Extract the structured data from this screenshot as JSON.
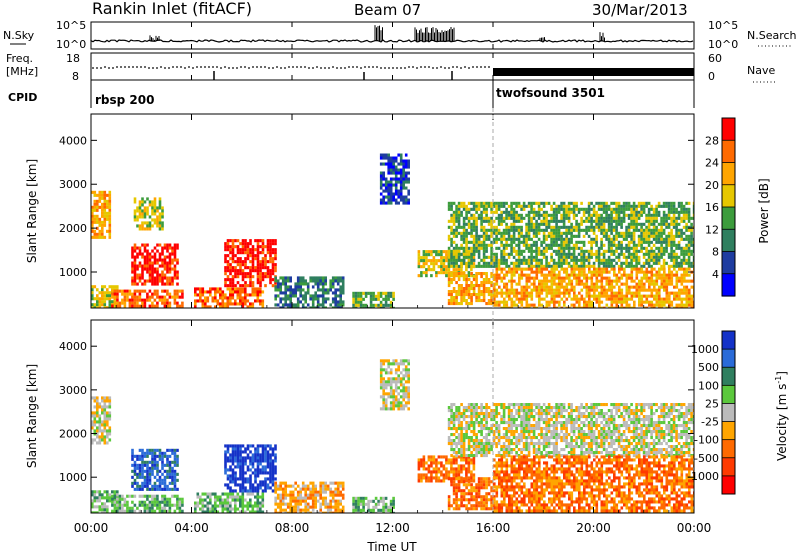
{
  "header": {
    "station": "Rankin Inlet (fitACF)",
    "beam": "Beam 07",
    "date": "30/Mar/2013"
  },
  "nsky_panel": {
    "left_label": "N.Sky",
    "right_label": "N.Search",
    "left_ticks": [
      "10^5",
      "10^0"
    ],
    "right_ticks": [
      "10^5",
      "10^0"
    ]
  },
  "freq_panel": {
    "left_label_top": "Freq.",
    "left_label_bottom": "[MHz]",
    "right_label": "Nave",
    "left_ticks": [
      "18",
      "8"
    ],
    "right_ticks": [
      "60",
      "0"
    ]
  },
  "cpid_panel": {
    "label": "CPID",
    "modes": [
      {
        "name": "rbsp 200",
        "start": "00:00"
      },
      {
        "name": "twofsound 3501",
        "start": "16:00"
      }
    ]
  },
  "chart_data": [
    {
      "type": "heatmap",
      "name": "power",
      "xlabel": "",
      "ylabel": "Slant Range [km]",
      "xlim": [
        0,
        24
      ],
      "ylim": [
        180,
        4600
      ],
      "yticks": [
        1000,
        2000,
        3000,
        4000
      ],
      "colorbar": {
        "label": "Power [dB]",
        "ticks": [
          "28",
          "24",
          "20",
          "16",
          "12",
          "8",
          "4"
        ],
        "colors": [
          "#ff0000",
          "#ff6a00",
          "#ffa500",
          "#e6c700",
          "#3c9c3c",
          "#2f7f5f",
          "#1e3ca0",
          "#0000ff"
        ]
      },
      "regions": [
        {
          "t0": 0.0,
          "t1": 1.0,
          "r0": 180,
          "r1": 700,
          "level": 3
        },
        {
          "t0": 1.6,
          "t1": 3.4,
          "r0": 700,
          "r1": 1650,
          "level": 0
        },
        {
          "t0": 0.8,
          "t1": 3.6,
          "r0": 180,
          "r1": 600,
          "level": 1
        },
        {
          "t0": 5.3,
          "t1": 7.3,
          "r0": 700,
          "r1": 1750,
          "level": 0
        },
        {
          "t0": 4.1,
          "t1": 6.8,
          "r0": 180,
          "r1": 650,
          "level": 1
        },
        {
          "t0": 0.0,
          "t1": 0.7,
          "r0": 1800,
          "r1": 2850,
          "level": 2
        },
        {
          "t0": 1.7,
          "t1": 2.8,
          "r0": 1950,
          "r1": 2700,
          "level": 3
        },
        {
          "t0": 7.3,
          "t1": 10.0,
          "r0": 180,
          "r1": 900,
          "level": 5
        },
        {
          "t0": 10.4,
          "t1": 12.0,
          "r0": 180,
          "r1": 550,
          "level": 4
        },
        {
          "t0": 13.0,
          "t1": 15.2,
          "r0": 900,
          "r1": 1500,
          "level": 3
        },
        {
          "t0": 14.2,
          "t1": 16.0,
          "r0": 250,
          "r1": 1000,
          "level": 2
        },
        {
          "t0": 14.2,
          "t1": 24.0,
          "r0": 1100,
          "r1": 2600,
          "level": 4
        },
        {
          "t0": 16.0,
          "t1": 24.0,
          "r0": 180,
          "r1": 1100,
          "level": 2
        },
        {
          "t0": 11.5,
          "t1": 12.6,
          "r0": 2600,
          "r1": 3700,
          "level": 6
        }
      ]
    },
    {
      "type": "heatmap",
      "name": "velocity",
      "xlabel": "Time UT",
      "ylabel": "Slant Range [km]",
      "xlim": [
        0,
        24
      ],
      "ylim": [
        180,
        4600
      ],
      "xticks": [
        "00:00",
        "04:00",
        "08:00",
        "12:00",
        "16:00",
        "20:00",
        "00:00"
      ],
      "yticks": [
        1000,
        2000,
        3000,
        4000
      ],
      "colorbar": {
        "label": "Velocity [m s-1]",
        "label_main": "Velocity [m s",
        "label_sup": "-1",
        "label_end": "]",
        "ticks": [
          "1000",
          "500",
          "100",
          "25",
          "-25",
          "-100",
          "-500",
          "-1000"
        ],
        "colors": [
          "#1432c8",
          "#2a6bd8",
          "#2f7f5f",
          "#5bc83c",
          "#bbbbbb",
          "#ffa500",
          "#ff6a00",
          "#ff3a00",
          "#ff0000"
        ]
      },
      "regions": [
        {
          "t0": 1.6,
          "t1": 3.4,
          "r0": 700,
          "r1": 1650,
          "level": 1
        },
        {
          "t0": 0.0,
          "t1": 1.0,
          "r0": 180,
          "r1": 700,
          "level": 3
        },
        {
          "t0": 0.8,
          "t1": 3.6,
          "r0": 180,
          "r1": 600,
          "level": 3
        },
        {
          "t0": 0.0,
          "t1": 0.7,
          "r0": 1800,
          "r1": 2850,
          "level": 4
        },
        {
          "t0": 5.3,
          "t1": 7.3,
          "r0": 700,
          "r1": 1750,
          "level": 0
        },
        {
          "t0": 4.1,
          "t1": 6.8,
          "r0": 180,
          "r1": 650,
          "level": 3
        },
        {
          "t0": 7.3,
          "t1": 10.0,
          "r0": 180,
          "r1": 900,
          "level": 5
        },
        {
          "t0": 10.4,
          "t1": 12.0,
          "r0": 180,
          "r1": 550,
          "level": 3
        },
        {
          "t0": 13.0,
          "t1": 15.2,
          "r0": 900,
          "r1": 1500,
          "level": 6
        },
        {
          "t0": 14.2,
          "t1": 16.0,
          "r0": 250,
          "r1": 1000,
          "level": 6
        },
        {
          "t0": 14.2,
          "t1": 24.0,
          "r0": 1500,
          "r1": 2700,
          "level": 4
        },
        {
          "t0": 16.0,
          "t1": 24.0,
          "r0": 180,
          "r1": 1500,
          "level": 6
        },
        {
          "t0": 11.5,
          "t1": 12.6,
          "r0": 2600,
          "r1": 3700,
          "level": 4
        }
      ]
    }
  ]
}
